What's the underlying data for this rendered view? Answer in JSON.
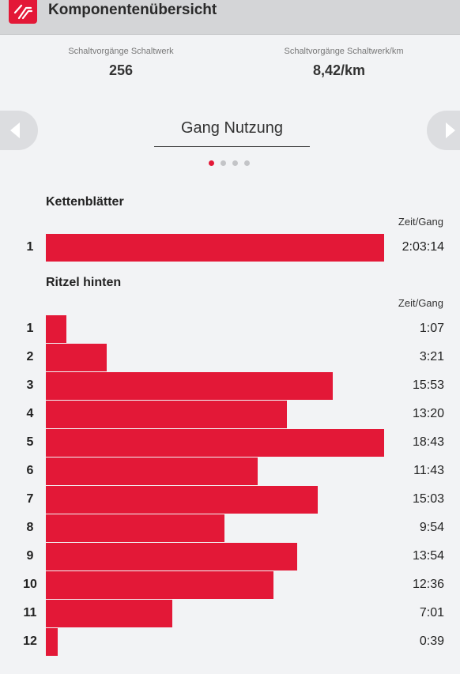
{
  "header": {
    "title": "Komponentenübersicht"
  },
  "stats": [
    {
      "label": "Schaltvorgänge Schaltwerk",
      "value": "256"
    },
    {
      "label": "Schaltvorgänge Schaltwerk/km",
      "value": "8,42/km"
    }
  ],
  "carousel": {
    "title": "Gang Nutzung",
    "pages": 4,
    "active": 0
  },
  "colors": {
    "accent": "#e31837"
  },
  "chart_data": [
    {
      "type": "bar",
      "title": "Kettenblätter",
      "value_label": "Zeit/Gang",
      "categories": [
        "1"
      ],
      "values_seconds": [
        7394
      ],
      "display": [
        "2:03:14"
      ]
    },
    {
      "type": "bar",
      "title": "Ritzel hinten",
      "value_label": "Zeit/Gang",
      "categories": [
        "1",
        "2",
        "3",
        "4",
        "5",
        "6",
        "7",
        "8",
        "9",
        "10",
        "11",
        "12"
      ],
      "values_seconds": [
        67,
        201,
        953,
        800,
        1123,
        703,
        903,
        594,
        834,
        756,
        421,
        39
      ],
      "display": [
        "1:07",
        "3:21",
        "15:53",
        "13:20",
        "18:43",
        "11:43",
        "15:03",
        "9:54",
        "13:54",
        "12:36",
        "7:01",
        "0:39"
      ]
    }
  ]
}
